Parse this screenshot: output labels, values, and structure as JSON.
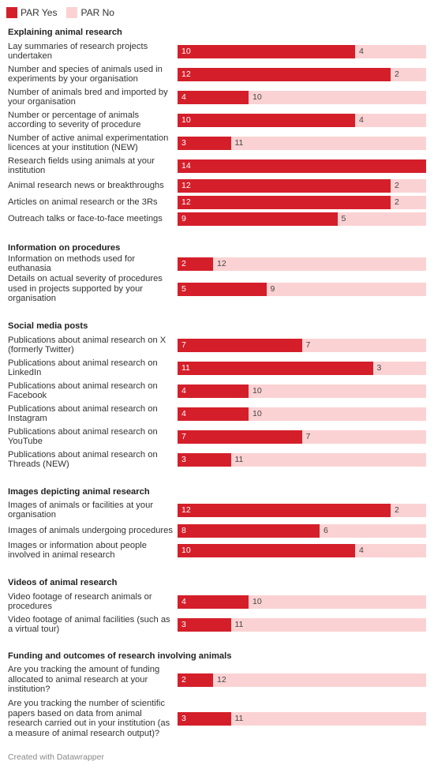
{
  "legend": [
    {
      "label": "PAR Yes",
      "color": "#d41f2a"
    },
    {
      "label": "PAR No",
      "color": "#fbd2d3"
    }
  ],
  "footer": "Created with Datawrapper",
  "chart_data": {
    "type": "bar",
    "orientation": "horizontal",
    "stacked": true,
    "series_names": [
      "PAR Yes",
      "PAR No"
    ],
    "total": 14,
    "groups": [
      {
        "title": "Explaining animal research",
        "rows": [
          {
            "label": "Lay summaries of research projects undertaken",
            "yes": 10,
            "no": 4
          },
          {
            "label": "Number and species of animals used in experiments by your organisation",
            "yes": 12,
            "no": 2
          },
          {
            "label": "Number of animals bred and imported by your organisation",
            "yes": 4,
            "no": 10
          },
          {
            "label": "Number or percentage of animals according to severity of procedure",
            "yes": 10,
            "no": 4
          },
          {
            "label": "Number of active animal experimentation licences at your institution (NEW)",
            "yes": 3,
            "no": 11
          },
          {
            "label": "Research fields using animals at your institution",
            "yes": 14,
            "no": 0
          },
          {
            "label": "Animal research news or breakthroughs",
            "yes": 12,
            "no": 2
          },
          {
            "label": "Articles on animal research or the 3Rs",
            "yes": 12,
            "no": 2
          },
          {
            "label": "Outreach talks or face-to-face meetings",
            "yes": 9,
            "no": 5
          }
        ]
      },
      {
        "title": "Information on procedures",
        "rows": [
          {
            "label": "Information on methods used for euthanasia",
            "yes": 2,
            "no": 12
          },
          {
            "label": "Details on actual severity of procedures used in projects supported by your organisation",
            "yes": 5,
            "no": 9
          }
        ]
      },
      {
        "title": "Social media posts",
        "rows": [
          {
            "label": "Publications about animal research on X (formerly Twitter)",
            "yes": 7,
            "no": 7
          },
          {
            "label": "Publications about animal research on LinkedIn",
            "yes": 11,
            "no": 3
          },
          {
            "label": "Publications about animal research on Facebook",
            "yes": 4,
            "no": 10
          },
          {
            "label": "Publications about animal research on Instagram",
            "yes": 4,
            "no": 10
          },
          {
            "label": "Publications about animal research on YouTube",
            "yes": 7,
            "no": 7
          },
          {
            "label": "Publications about animal research on Threads (NEW)",
            "yes": 3,
            "no": 11
          }
        ]
      },
      {
        "title": "Images depicting animal research",
        "rows": [
          {
            "label": "Images of animals or facilities at your organisation",
            "yes": 12,
            "no": 2
          },
          {
            "label": "Images of animals undergoing procedures",
            "yes": 8,
            "no": 6
          },
          {
            "label": "Images or information about people involved in animal research",
            "yes": 10,
            "no": 4
          }
        ]
      },
      {
        "title": "Videos of animal research",
        "rows": [
          {
            "label": "Video footage of research animals or procedures",
            "yes": 4,
            "no": 10
          },
          {
            "label": "Video footage of animal facilities (such as a virtual tour)",
            "yes": 3,
            "no": 11
          }
        ]
      },
      {
        "title": "Funding and outcomes of research involving animals",
        "rows": [
          {
            "label": "Are you tracking the amount of funding allocated to animal research at your institution?",
            "yes": 2,
            "no": 12
          },
          {
            "label": "Are you tracking the number of scientific papers based on data from animal research carried out in your institution (as a measure of animal research output)?",
            "yes": 3,
            "no": 11
          }
        ]
      }
    ]
  }
}
